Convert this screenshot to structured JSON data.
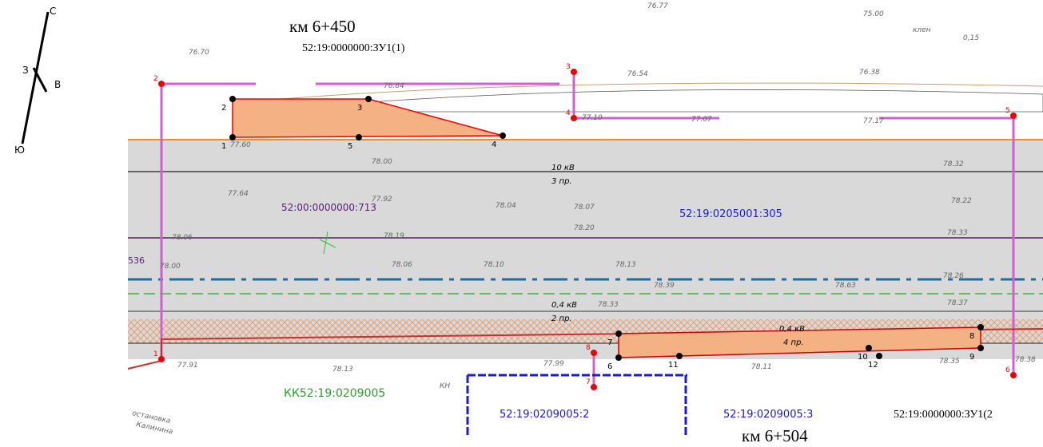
{
  "compass": {
    "north": "С",
    "east": "В",
    "south": "Ю",
    "west": "З"
  },
  "km_labels": [
    "км 6+450",
    "км 6+504"
  ],
  "parcels": [
    "52:19:0000000:ЗУ1(1)",
    "52:19:0000000:ЗУ1(2",
    "52:19:0205001:305",
    "52:00:0000000:713",
    "КК52:19:0209005",
    "52:19:0209005:2",
    "52:19:0209005:3",
    "536"
  ],
  "power_lines": [
    "10 кВ",
    "3 пр.",
    "0,4 кВ",
    "2 пр.",
    "0,4 кВ",
    "4 пр."
  ],
  "red_points": [
    "1",
    "2",
    "3",
    "4",
    "5",
    "6",
    "7",
    "8"
  ],
  "black_points": [
    "1",
    "2",
    "3",
    "4",
    "5",
    "6",
    "7",
    "8",
    "9",
    "10",
    "11",
    "12"
  ],
  "elevations": [
    "76.70",
    "77.60",
    "78.00",
    "77.64",
    "77.92",
    "78.04",
    "78.07",
    "78.20",
    "78.22",
    "78.32",
    "78.33",
    "78.06",
    "78.19",
    "78.00",
    "78.06",
    "78.10",
    "78.13",
    "78.26",
    "78.39",
    "78.63",
    "78.33",
    "78.37",
    "77.91",
    "78.13",
    "77.99",
    "78.11",
    "78.35",
    "78.38",
    "76.54",
    "76.38",
    "75.00",
    "76.77",
    "76.84",
    "77.07",
    "77.17",
    "77.10"
  ],
  "other": [
    "остановка",
    "Калинина",
    "КН",
    "клен",
    "0,15"
  ]
}
